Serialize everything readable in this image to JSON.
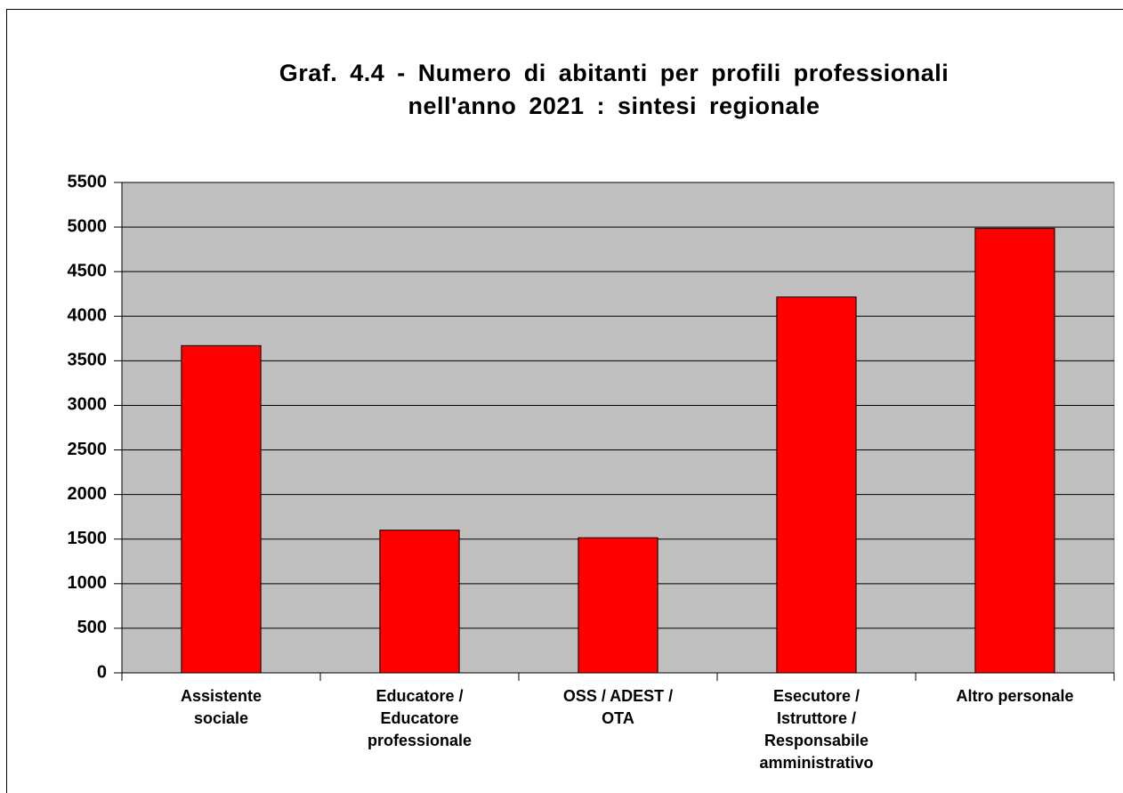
{
  "chart_data": {
    "type": "bar",
    "title": "Graf. 4.4 - Numero di abitanti per profili professionali\nnell'anno 2021 : sintesi regionale",
    "categories": [
      "Assistente\nsociale",
      "Educatore /\nEducatore\nprofessionale",
      "OSS / ADEST /\nOTA",
      "Esecutore /\nIstruttore /\nResponsabile\namministrativo",
      "Altro personale"
    ],
    "values": [
      3670,
      1600,
      1515,
      4215,
      4985
    ],
    "color": "#ff0000",
    "ylim": [
      0,
      5500
    ],
    "yticks": [
      0,
      500,
      1000,
      1500,
      2000,
      2500,
      3000,
      3500,
      4000,
      4500,
      5000,
      5500
    ],
    "grid": true
  }
}
